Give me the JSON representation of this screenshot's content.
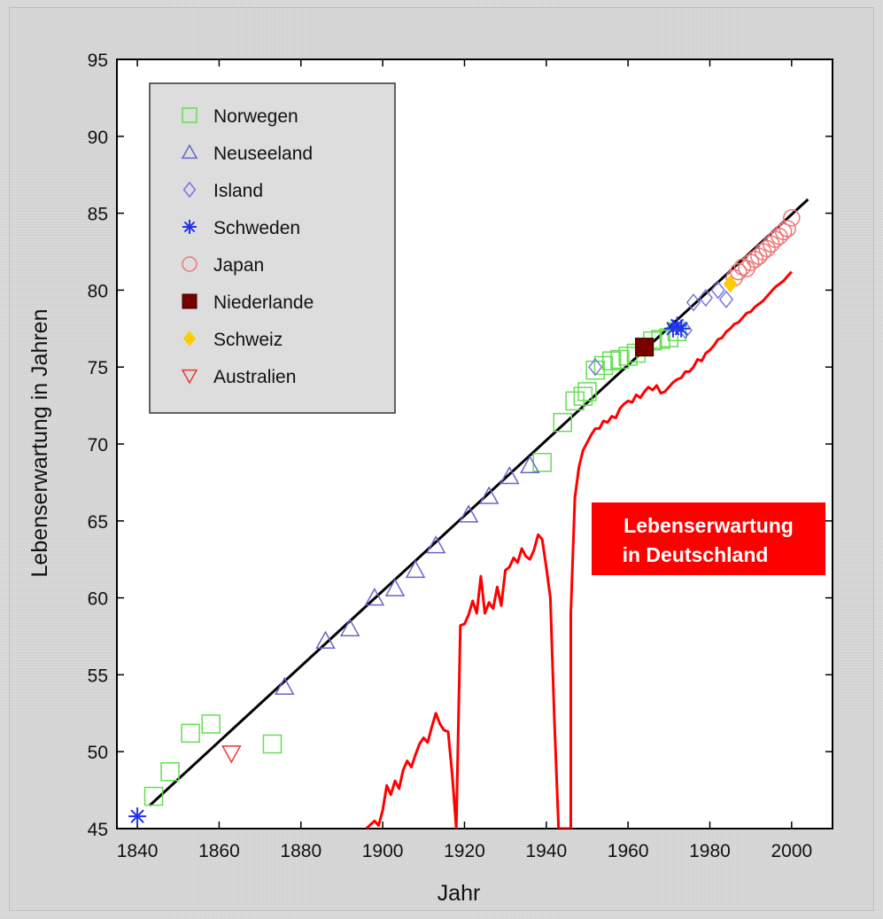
{
  "chart_data": {
    "type": "scatter",
    "xlabel": "Jahr",
    "ylabel": "Lebenserwartung in Jahren",
    "xlim": [
      1835,
      2010
    ],
    "ylim": [
      45,
      95
    ],
    "x_ticks": [
      1840,
      1860,
      1880,
      1900,
      1920,
      1940,
      1960,
      1980,
      2000
    ],
    "y_ticks": [
      45,
      50,
      55,
      60,
      65,
      70,
      75,
      80,
      85,
      90,
      95
    ],
    "grid": false,
    "legend_position": "top-left",
    "trend_line": {
      "x": [
        1843,
        2004
      ],
      "y": [
        46.5,
        85.9
      ],
      "color": "#000000"
    },
    "series": [
      {
        "name": "Norwegen",
        "marker": "square",
        "color": "#66dd55",
        "points": [
          [
            1844,
            47.1
          ],
          [
            1848,
            48.7
          ],
          [
            1853,
            51.2
          ],
          [
            1858,
            51.8
          ],
          [
            1873,
            50.5
          ],
          [
            1939,
            68.8
          ],
          [
            1944,
            71.4
          ],
          [
            1947,
            72.8
          ],
          [
            1949,
            73.1
          ],
          [
            1950,
            73.4
          ],
          [
            1952,
            74.8
          ],
          [
            1954,
            75.1
          ],
          [
            1956,
            75.4
          ],
          [
            1958,
            75.5
          ],
          [
            1960,
            75.7
          ],
          [
            1962,
            75.9
          ],
          [
            1964,
            76.3
          ],
          [
            1966,
            76.7
          ],
          [
            1968,
            76.8
          ],
          [
            1970,
            76.9
          ],
          [
            1972,
            77.3
          ]
        ]
      },
      {
        "name": "Neuseeland",
        "marker": "triangle-up",
        "color": "#6666cc",
        "points": [
          [
            1876,
            54.2
          ],
          [
            1886,
            57.2
          ],
          [
            1892,
            58.0
          ],
          [
            1898,
            60.0
          ],
          [
            1903,
            60.6
          ],
          [
            1908,
            61.8
          ],
          [
            1913,
            63.4
          ],
          [
            1921,
            65.4
          ],
          [
            1926,
            66.6
          ],
          [
            1931,
            67.9
          ],
          [
            1936,
            68.6
          ]
        ]
      },
      {
        "name": "Island",
        "marker": "diamond",
        "color": "#7777dd",
        "points": [
          [
            1952,
            75.0
          ],
          [
            1974,
            77.4
          ],
          [
            1976,
            79.2
          ],
          [
            1979,
            79.5
          ],
          [
            1982,
            80.0
          ],
          [
            1984,
            79.4
          ]
        ]
      },
      {
        "name": "Schweden",
        "marker": "asterisk",
        "color": "#2233ee",
        "points": [
          [
            1840,
            45.8
          ],
          [
            1971,
            77.5
          ],
          [
            1972,
            77.7
          ],
          [
            1973,
            77.5
          ]
        ]
      },
      {
        "name": "Japan",
        "marker": "circle",
        "color": "#ee7777",
        "points": [
          [
            1986,
            80.8
          ],
          [
            1987,
            81.2
          ],
          [
            1988,
            81.5
          ],
          [
            1989,
            81.4
          ],
          [
            1990,
            81.8
          ],
          [
            1991,
            82.0
          ],
          [
            1992,
            82.2
          ],
          [
            1993,
            82.5
          ],
          [
            1994,
            82.7
          ],
          [
            1995,
            83.0
          ],
          [
            1996,
            83.3
          ],
          [
            1997,
            83.5
          ],
          [
            1998,
            83.8
          ],
          [
            1999,
            84.0
          ],
          [
            2000,
            84.7
          ]
        ]
      },
      {
        "name": "Niederlande",
        "marker": "square-filled",
        "color": "#7a0000",
        "points": [
          [
            1964,
            76.3
          ]
        ]
      },
      {
        "name": "Schweiz",
        "marker": "diamond-filled",
        "color": "#ffcc00",
        "points": [
          [
            1985,
            80.4
          ]
        ]
      },
      {
        "name": "Australien",
        "marker": "triangle-down",
        "color": "#ee3333",
        "points": [
          [
            1863,
            49.9
          ]
        ]
      }
    ],
    "line_series": {
      "color": "#ff0000",
      "x": [
        1896,
        1898,
        1899,
        1900,
        1901,
        1902,
        1903,
        1904,
        1905,
        1906,
        1907,
        1908,
        1909,
        1910,
        1911,
        1912,
        1913,
        1914,
        1915,
        1916,
        1917,
        1918,
        1919,
        1920,
        1921,
        1922,
        1923,
        1924,
        1925,
        1926,
        1927,
        1928,
        1929,
        1930,
        1931,
        1932,
        1933,
        1934,
        1935,
        1936,
        1937,
        1938,
        1939,
        1940,
        1941,
        1942,
        1943,
        1943,
        1946,
        1946,
        1947,
        1948,
        1949,
        1950,
        1951,
        1952,
        1953,
        1954,
        1955,
        1956,
        1957,
        1958,
        1959,
        1960,
        1961,
        1962,
        1963,
        1964,
        1965,
        1966,
        1967,
        1968,
        1969,
        1970,
        1971,
        1972,
        1973,
        1974,
        1975,
        1976,
        1977,
        1978,
        1979,
        1980,
        1981,
        1982,
        1983,
        1984,
        1985,
        1986,
        1987,
        1988,
        1989,
        1990,
        1991,
        1992,
        1993,
        1994,
        1995,
        1996,
        1997,
        1998,
        1999,
        2000
      ],
      "y": [
        45.0,
        45.5,
        45.2,
        46.2,
        47.8,
        47.2,
        48.1,
        47.6,
        48.8,
        49.4,
        49.0,
        49.8,
        50.5,
        50.9,
        50.6,
        51.6,
        52.5,
        51.8,
        51.4,
        51.3,
        48.5,
        45.0,
        58.2,
        58.3,
        58.9,
        59.8,
        59.0,
        61.4,
        59.0,
        59.7,
        59.3,
        60.7,
        59.5,
        61.8,
        62.0,
        62.6,
        62.3,
        63.2,
        62.7,
        62.5,
        63.1,
        64.1,
        63.8,
        62.0,
        60.0,
        52.0,
        45.0,
        45.0,
        45.0,
        59.0,
        66.5,
        68.5,
        69.6,
        70.1,
        70.6,
        71.0,
        71.0,
        71.5,
        71.4,
        71.8,
        71.7,
        72.3,
        72.6,
        72.8,
        72.7,
        73.2,
        73.0,
        73.4,
        73.7,
        73.5,
        73.8,
        73.3,
        73.4,
        73.7,
        74.0,
        74.2,
        74.3,
        74.7,
        74.7,
        75.0,
        75.5,
        75.4,
        75.9,
        76.1,
        76.4,
        76.8,
        76.9,
        77.3,
        77.5,
        77.8,
        77.9,
        78.2,
        78.5,
        78.6,
        78.9,
        79.1,
        79.3,
        79.6,
        79.9,
        80.2,
        80.4,
        80.6,
        80.9,
        81.2
      ]
    },
    "annotation": {
      "lines": [
        "Lebenserwartung",
        "in Deutschland"
      ],
      "color": "#ff0000"
    }
  }
}
